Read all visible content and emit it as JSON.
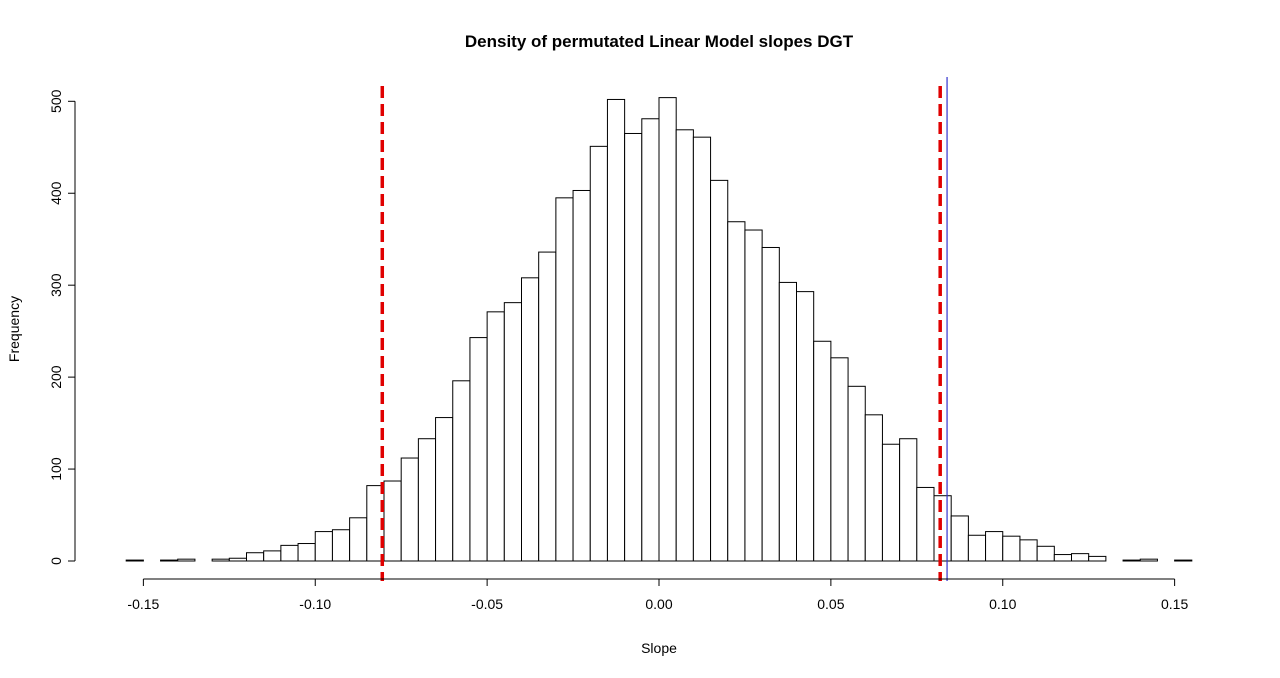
{
  "chart_data": {
    "type": "bar",
    "title": "Density of permutated Linear Model slopes DGT",
    "xlabel": "Slope",
    "ylabel": "Frequency",
    "xlim": [
      -0.155,
      0.155
    ],
    "ylim": [
      0,
      500
    ],
    "x_ticks": [
      -0.15,
      -0.1,
      -0.05,
      0.0,
      0.05,
      0.1,
      0.15
    ],
    "x_tick_labels": [
      "-0.15",
      "-0.10",
      "-0.05",
      "0.00",
      "0.05",
      "0.10",
      "0.15"
    ],
    "y_ticks": [
      0,
      100,
      200,
      300,
      400,
      500
    ],
    "y_tick_labels": [
      "0",
      "100",
      "200",
      "300",
      "400",
      "500"
    ],
    "bin_width": 0.005,
    "bin_start": -0.155,
    "counts": [
      1,
      0,
      1,
      2,
      0,
      2,
      3,
      9,
      11,
      17,
      19,
      32,
      34,
      47,
      82,
      87,
      112,
      133,
      156,
      196,
      243,
      271,
      281,
      308,
      336,
      395,
      403,
      451,
      502,
      465,
      481,
      504,
      469,
      461,
      414,
      369,
      360,
      341,
      303,
      293,
      239,
      221,
      190,
      159,
      127,
      133,
      80,
      71,
      49,
      28,
      32,
      27,
      23,
      16,
      7,
      8,
      5,
      0,
      1,
      2,
      0,
      1
    ],
    "reference_lines": [
      {
        "x": -0.0805,
        "color": "#e00000",
        "style": "dashed"
      },
      {
        "x": 0.0818,
        "color": "#e00000",
        "style": "dashed"
      },
      {
        "x": 0.0838,
        "color": "#3333cc",
        "style": "solid"
      }
    ],
    "grid": false
  }
}
